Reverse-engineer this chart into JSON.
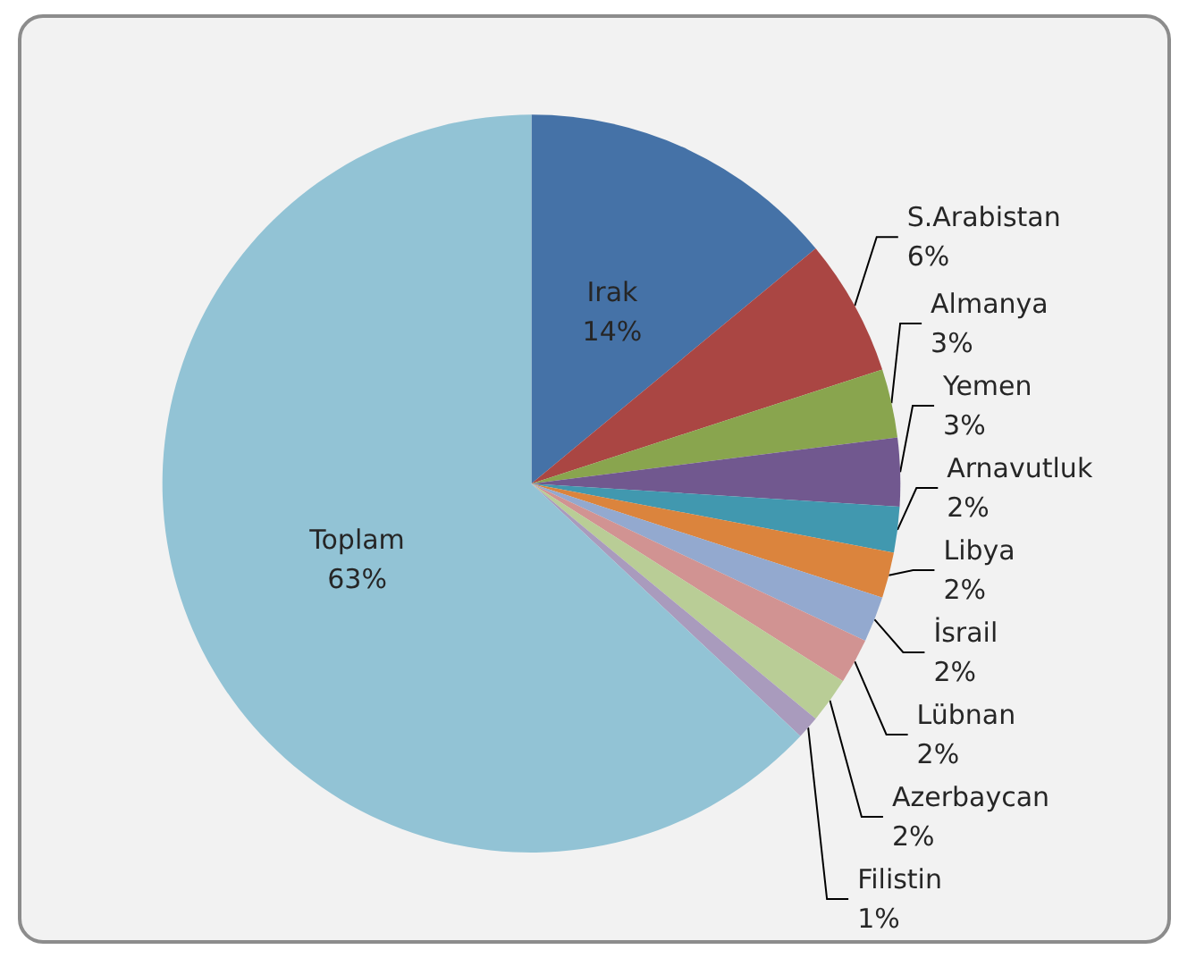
{
  "chart_data": {
    "type": "pie",
    "categories": [
      "Irak",
      "S.Arabistan",
      "Almanya",
      "Yemen",
      "Arnavutluk",
      "Libya",
      "İsrail",
      "Lübnan",
      "Azerbaycan",
      "Filistin",
      "Toplam"
    ],
    "values": [
      14,
      6,
      3,
      3,
      2,
      2,
      2,
      2,
      2,
      1,
      63
    ],
    "value_labels": [
      "14%",
      "6%",
      "3%",
      "3%",
      "2%",
      "2%",
      "2%",
      "2%",
      "2%",
      "1%",
      "63%"
    ],
    "colors": [
      "#4572a7",
      "#aa4643",
      "#89a54e",
      "#71588f",
      "#4198af",
      "#db843d",
      "#93a9cf",
      "#d19392",
      "#b9cd96",
      "#a99bbd",
      "#92c3d5"
    ],
    "legend": false
  }
}
